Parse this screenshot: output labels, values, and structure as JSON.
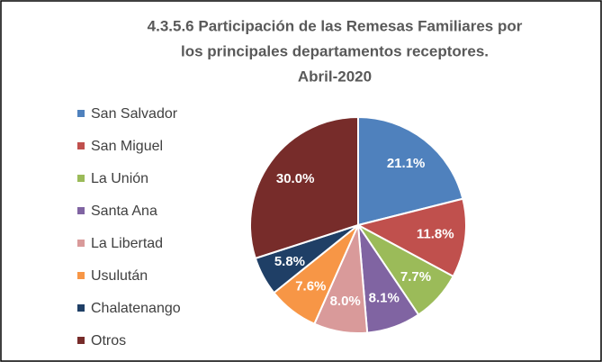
{
  "chart_data": {
    "type": "pie",
    "title": [
      "4.3.5.6 Participación de las Remesas Familiares por",
      "los principales departamentos receptores.",
      "Abril-2020"
    ],
    "categories": [
      "San Salvador",
      "San Miguel",
      "La Unión",
      "Santa Ana",
      "La Libertad",
      "Usulután",
      "Chalatenango",
      "Otros"
    ],
    "values": [
      21.1,
      11.8,
      7.7,
      8.1,
      8.0,
      7.6,
      5.8,
      30.0
    ],
    "value_labels": [
      "21.1%",
      "11.8%",
      "7.7%",
      "8.1%",
      "8.0%",
      "7.6%",
      "5.8%",
      "30.0%"
    ],
    "colors": [
      "#4f81bd",
      "#c0504d",
      "#9bbb59",
      "#8064a2",
      "#d99a9a",
      "#f79646",
      "#1f3f66",
      "#772c2a"
    ],
    "legend": "left"
  }
}
